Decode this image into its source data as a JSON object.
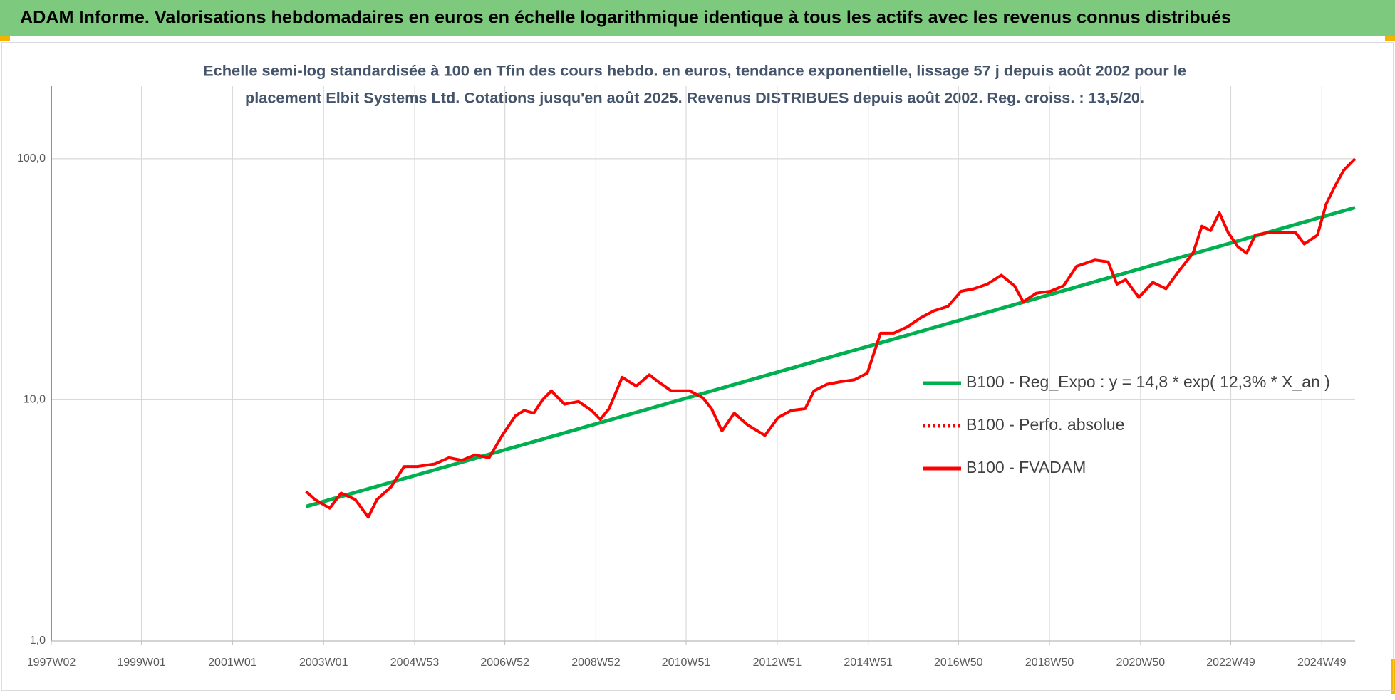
{
  "chart_data": {
    "type": "line",
    "title": "ADAM Informe. Valorisations hebdomadaires en euros en échelle logarithmique identique à tous les actifs avec les revenus connus distribués",
    "subtitle": [
      "Echelle semi-log standardisée à 100 en Tfin des cours hebdo. en euros, tendance exponentielle, lissage 57 j depuis août 2002 pour le",
      "placement Elbit Systems Ltd. Cotations jusqu'en août 2025. Revenus DISTRIBUES depuis août 2002. Reg. croiss. : 13,5/20."
    ],
    "log_y": true,
    "grid": true,
    "legend": "lower right",
    "ylim": [
      1,
      200
    ],
    "yticks": [
      {
        "value": 1,
        "label": "1,0"
      },
      {
        "value": 10,
        "label": "10,0"
      },
      {
        "value": 100,
        "label": "100,0"
      }
    ],
    "xlim": [
      "1997W02",
      "2025W35"
    ],
    "xticks": [
      "1997W02",
      "1999W01",
      "2001W01",
      "2003W01",
      "2004W53",
      "2006W52",
      "2008W52",
      "2010W51",
      "2012W51",
      "2014W51",
      "2016W50",
      "2018W50",
      "2020W50",
      "2022W49",
      "2024W49"
    ],
    "series": [
      {
        "name": "B100 - Reg_Expo : y = 14,8 * exp( 12,3% *  X_an )",
        "color": "#00b050",
        "dash": "solid",
        "x": [
          "2002W33",
          "2025W35"
        ],
        "values": [
          3.61,
          62.7
        ]
      },
      {
        "name": "B100 - Perfo. absolue",
        "color": "#ff0000",
        "dash": "dotted",
        "x": [],
        "values": []
      },
      {
        "name": "B100 - FVADAM",
        "color": "#ff0000",
        "dash": "solid",
        "x": [
          "2002W33",
          "2002W43",
          "2003W08",
          "2003W21",
          "2003W37",
          "2003W52",
          "2004W10",
          "2004W26",
          "2004W41",
          "2005W04",
          "2005W24",
          "2005W40",
          "2006W03",
          "2006W18",
          "2006W34",
          "2006W49",
          "2007W12",
          "2007W22",
          "2007W33",
          "2007W43",
          "2008W01",
          "2008W16",
          "2008W32",
          "2008W47",
          "2009W05",
          "2009W15",
          "2009W30",
          "2009W46",
          "2010W09",
          "2010W19",
          "2010W34",
          "2011W03",
          "2011W18",
          "2011W28",
          "2011W40",
          "2012W02",
          "2012W17",
          "2012W37",
          "2012W52",
          "2013W15",
          "2013W31",
          "2013W41",
          "2014W04",
          "2014W20",
          "2014W35",
          "2014W50",
          "2015W13",
          "2015W28",
          "2015W44",
          "2016W07",
          "2016W22",
          "2016W38",
          "2017W01",
          "2017W16",
          "2017W31",
          "2017W47",
          "2018W10",
          "2018W20",
          "2018W35",
          "2018W51",
          "2019W14",
          "2019W29",
          "2019W50",
          "2020W13",
          "2020W23",
          "2020W33",
          "2020W48",
          "2021W12",
          "2021W27",
          "2021W42",
          "2022W06",
          "2022W16",
          "2022W26",
          "2022W36",
          "2022W46",
          "2023W05",
          "2023W15",
          "2023W25",
          "2023W40",
          "2024W04",
          "2024W19",
          "2024W29",
          "2024W44",
          "2025W02",
          "2025W12",
          "2025W22",
          "2025W35"
        ],
        "values": [
          4.17,
          3.86,
          3.55,
          4.1,
          3.86,
          3.26,
          3.86,
          4.35,
          5.29,
          5.29,
          5.42,
          5.75,
          5.61,
          5.91,
          5.75,
          7.12,
          8.58,
          9.03,
          8.81,
          10.0,
          10.9,
          9.59,
          9.84,
          9.03,
          8.29,
          9.19,
          12.4,
          11.4,
          12.7,
          11.9,
          10.9,
          10.9,
          10.2,
          9.19,
          7.43,
          8.81,
          7.88,
          7.12,
          8.44,
          9.03,
          9.19,
          10.9,
          11.6,
          11.9,
          12.1,
          12.9,
          18.9,
          18.9,
          20.1,
          21.9,
          23.4,
          24.4,
          28.2,
          28.9,
          30.2,
          32.9,
          29.7,
          25.5,
          27.7,
          28.2,
          29.7,
          35.8,
          38.0,
          37.3,
          30.2,
          31.5,
          26.6,
          30.7,
          28.9,
          34.3,
          40.6,
          52.5,
          50.3,
          59.6,
          49.4,
          43.2,
          40.6,
          48.2,
          49.4,
          49.4,
          49.4,
          44.3,
          48.2,
          64.9,
          76.9,
          89.5,
          100
        ]
      }
    ]
  }
}
